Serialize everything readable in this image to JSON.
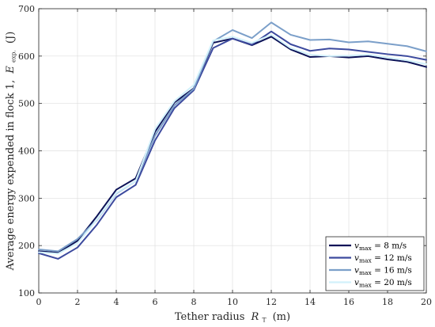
{
  "chart_data": {
    "type": "line",
    "xlabel_main": "Tether radius",
    "xlabel_symbol": "R",
    "xlabel_sub": "T",
    "xlabel_unit": "(m)",
    "ylabel_main": "Average energy expended in flock 1,",
    "ylabel_symbol": "E",
    "ylabel_sub": "exp.",
    "ylabel_unit": "(J)",
    "xlim": [
      0,
      20
    ],
    "ylim": [
      100,
      700
    ],
    "xticks": [
      0,
      2,
      4,
      6,
      8,
      10,
      12,
      14,
      16,
      18,
      20
    ],
    "yticks": [
      100,
      200,
      300,
      400,
      500,
      600,
      700
    ],
    "grid": true,
    "legend_position": "bottom-right",
    "x": [
      0,
      1,
      2,
      3,
      4,
      5,
      6,
      7,
      8,
      9,
      10,
      11,
      12,
      13,
      14,
      15,
      16,
      17,
      18,
      19,
      20
    ],
    "series": [
      {
        "name_sym": "v",
        "name_sub": "max",
        "name_rest": " = 8 m/s",
        "color": "#0b1257",
        "values": [
          188,
          185,
          210,
          262,
          318,
          342,
          440,
          502,
          532,
          628,
          637,
          623,
          641,
          614,
          598,
          600,
          597,
          600,
          593,
          588,
          577
        ]
      },
      {
        "name_sym": "v",
        "name_sub": "max",
        "name_rest": " = 12 m/s",
        "color": "#3c4a9e",
        "values": [
          184,
          172,
          196,
          244,
          302,
          328,
          422,
          490,
          528,
          617,
          637,
          624,
          652,
          625,
          611,
          616,
          614,
          609,
          604,
          600,
          592
        ]
      },
      {
        "name_sym": "v",
        "name_sub": "max",
        "name_rest": " = 16 m/s",
        "color": "#7b9fc9",
        "values": [
          192,
          188,
          214,
          254,
          310,
          336,
          432,
          496,
          531,
          631,
          655,
          638,
          671,
          645,
          634,
          635,
          629,
          631,
          626,
          621,
          610
        ]
      },
      {
        "name_sym": "v",
        "name_sub": "max",
        "name_rest": " = 20 m/s",
        "color": "#d2f1fb",
        "values": [
          186,
          183,
          205,
          255,
          311,
          336,
          446,
          505,
          539,
          633,
          641,
          628,
          645,
          617,
          603,
          600,
          601,
          603,
          597,
          591,
          583
        ]
      }
    ]
  }
}
